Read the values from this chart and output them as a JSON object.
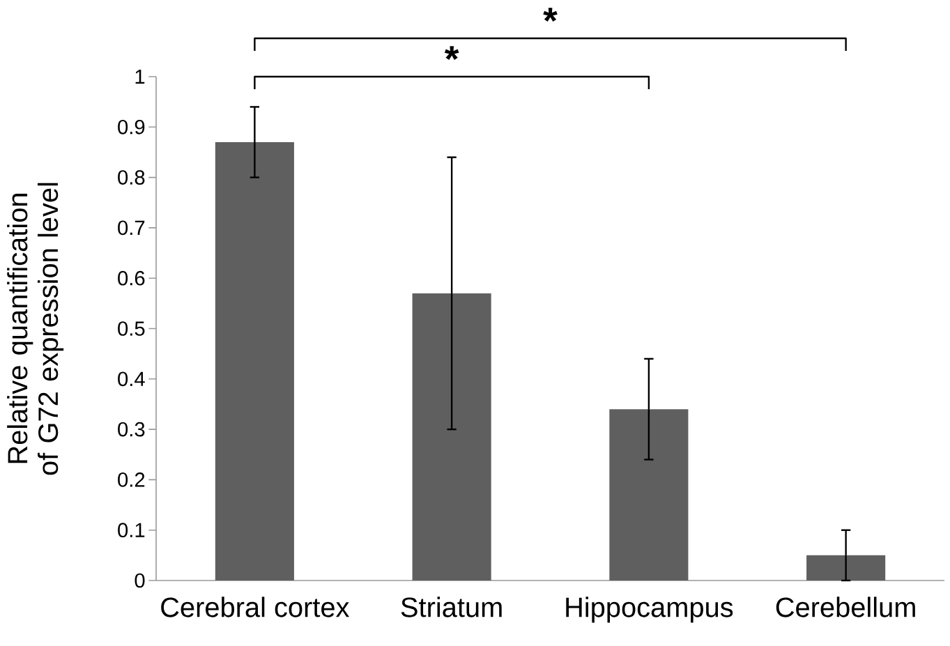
{
  "chart_data": {
    "type": "bar",
    "ylabel": "Relative quantification of G72 expression level",
    "categories": [
      "Cerebral cortex",
      "Striatum",
      "Hippocampus",
      "Cerebellum"
    ],
    "values": [
      0.87,
      0.57,
      0.34,
      0.05
    ],
    "errors": [
      0.07,
      0.27,
      0.1,
      0.05
    ],
    "color": "#5f5f5f",
    "ylim": [
      0,
      1
    ],
    "yticks": [
      0,
      0.1,
      0.2,
      0.3,
      0.4,
      0.5,
      0.6,
      0.7,
      0.8,
      0.9,
      1
    ],
    "grid": false,
    "annotations": [
      "*",
      "*"
    ]
  }
}
